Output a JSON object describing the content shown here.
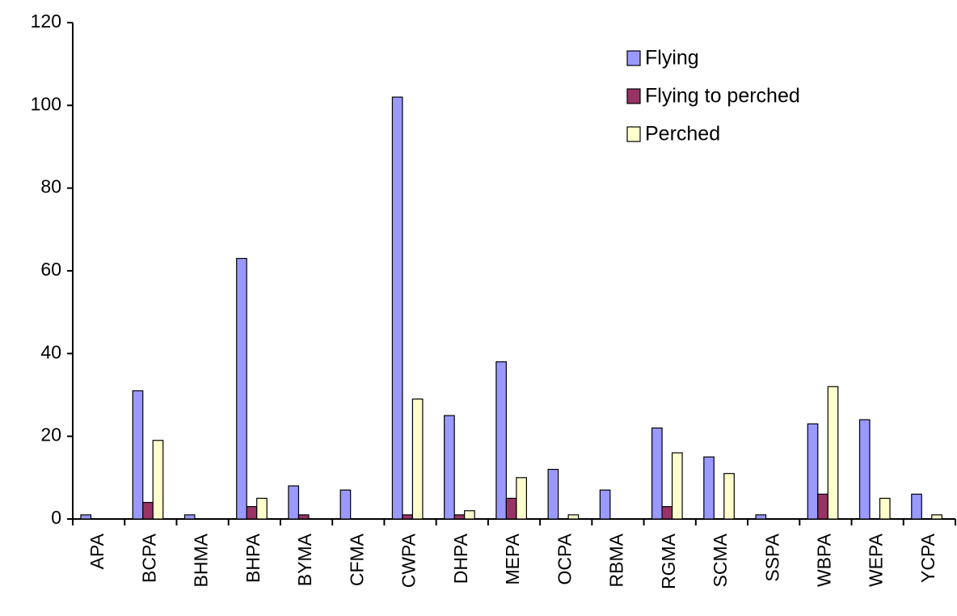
{
  "chart_data": {
    "type": "bar",
    "categories": [
      "APA",
      "BCPA",
      "BHMA",
      "BHPA",
      "BYMA",
      "CFMA",
      "CWPA",
      "DHPA",
      "MEPA",
      "OCPA",
      "RBMA",
      "RGMA",
      "SCMA",
      "SSPA",
      "WBPA",
      "WEPA",
      "YCPA"
    ],
    "series": [
      {
        "name": "Flying",
        "color": "#9999ff",
        "values": [
          1,
          31,
          1,
          63,
          8,
          7,
          102,
          25,
          38,
          12,
          7,
          22,
          15,
          1,
          23,
          24,
          6
        ]
      },
      {
        "name": "Flying to perched",
        "color": "#993366",
        "values": [
          0,
          4,
          0,
          3,
          1,
          0,
          1,
          1,
          5,
          0,
          0,
          3,
          0,
          0,
          6,
          0,
          0
        ]
      },
      {
        "name": "Perched",
        "color": "#ffffcc",
        "values": [
          0,
          19,
          0,
          5,
          0,
          0,
          29,
          2,
          10,
          1,
          0,
          16,
          11,
          0,
          32,
          5,
          1
        ]
      }
    ],
    "ylim": [
      0,
      120
    ],
    "yticks": [
      0,
      20,
      40,
      60,
      80,
      100,
      120
    ],
    "legend": "upper right"
  }
}
